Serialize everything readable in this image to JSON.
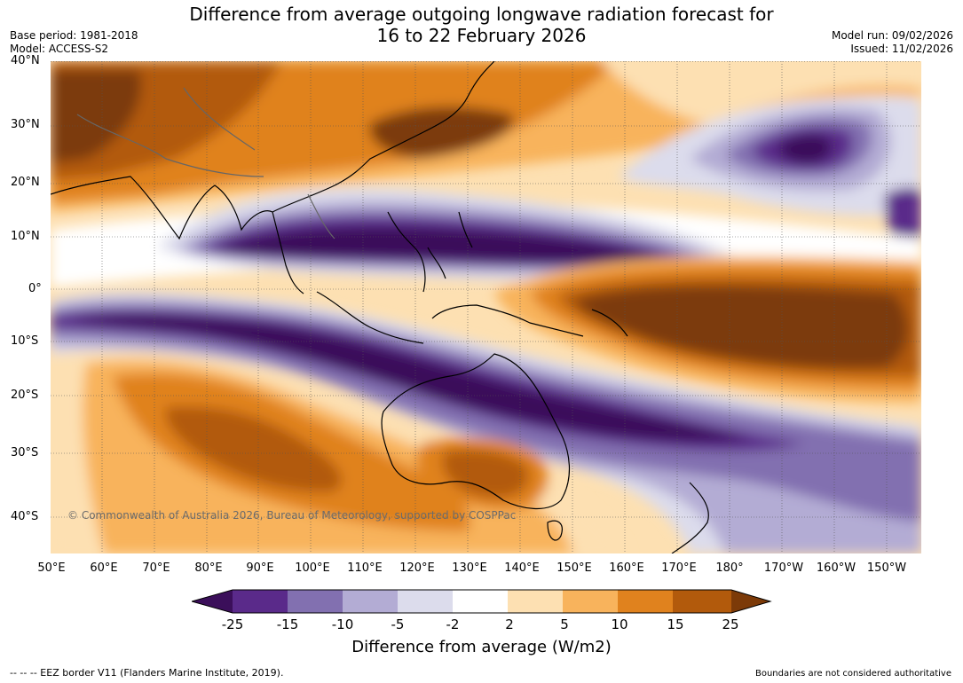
{
  "header": {
    "title_line1": "Difference from average outgoing longwave radiation forecast for",
    "title_line2": "16 to 22 February 2026",
    "base_period": "Base period: 1981-2018",
    "model": "Model: ACCESS-S2",
    "model_run": "Model run: 09/02/2026",
    "issued": "Issued: 11/02/2026"
  },
  "map": {
    "lat_labels": [
      "40°N",
      "30°N",
      "20°N",
      "10°N",
      "0°",
      "10°S",
      "20°S",
      "30°S",
      "40°S"
    ],
    "lon_labels": [
      "50°E",
      "60°E",
      "70°E",
      "80°E",
      "90°E",
      "100°E",
      "110°E",
      "120°E",
      "130°E",
      "140°E",
      "150°E",
      "160°E",
      "170°E",
      "180°",
      "170°W",
      "160°W",
      "150°W"
    ],
    "watermark": "© Commonwealth of Australia 2026, Bureau of Meteorology, supported by COSPPac"
  },
  "colorbar": {
    "ticks": [
      "-25",
      "-15",
      "-10",
      "-5",
      "-2",
      "2",
      "5",
      "10",
      "15",
      "25"
    ],
    "colors": [
      "#3b0f5a",
      "#5a2a8a",
      "#8270b0",
      "#b3acd4",
      "#dcdcec",
      "#ffffff",
      "#fde0b2",
      "#f8b35c",
      "#e0821e",
      "#b25a0c",
      "#7c3a08"
    ],
    "label": "Difference from average (W/m2)"
  },
  "footer": {
    "eez_legend": "-- -- -- EEZ border V11 (Flanders Marine Institute, 2019).",
    "disclaimer": "Boundaries are not considered authoritative"
  }
}
